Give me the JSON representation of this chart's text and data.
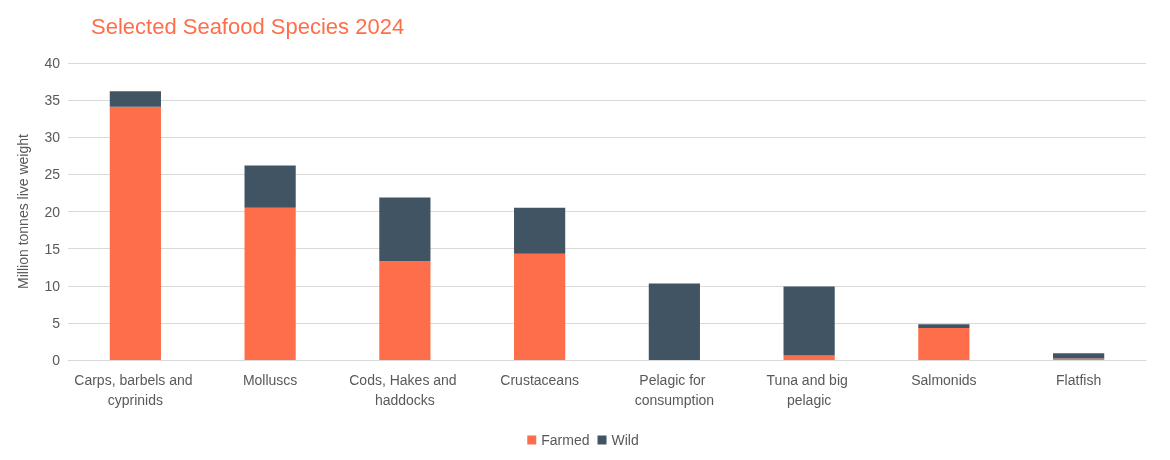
{
  "chart_data": {
    "type": "bar",
    "title": "Selected Seafood Species 2024",
    "ylabel": "Million tonnes live weight",
    "categories": [
      "Carps, barbels and cyprinids",
      "Molluscs",
      "Cods, Hakes and haddocks",
      "Crustaceans",
      "Pelagic for consumption",
      "Tuna and big pelagic",
      "Salmonids",
      "Flatfish"
    ],
    "series": [
      {
        "name": "Farmed",
        "color": "#ff6e4a",
        "values": [
          34.1,
          20.5,
          13.3,
          14.3,
          0,
          0.6,
          4.3,
          0.2
        ]
      },
      {
        "name": "Wild",
        "color": "#415463",
        "values": [
          2.1,
          5.7,
          8.6,
          6.2,
          10.3,
          9.3,
          0.5,
          0.7
        ]
      }
    ],
    "stacked": true,
    "ylim": [
      0,
      40
    ],
    "yticks": [
      0,
      5,
      10,
      15,
      20,
      25,
      30,
      35,
      40
    ],
    "grid": "y",
    "legend": "bottom"
  }
}
